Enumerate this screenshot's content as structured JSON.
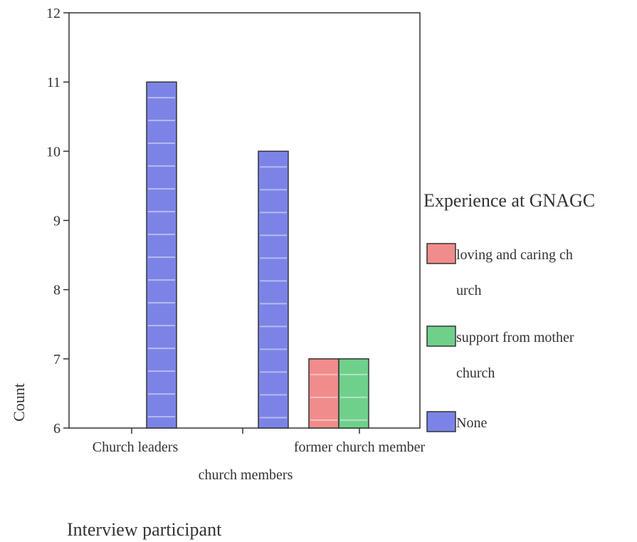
{
  "chart_data": {
    "type": "bar",
    "categories": [
      "Church leaders",
      "church members",
      "former church member"
    ],
    "series": [
      {
        "name": "loving and caring ch urch",
        "color": "#f08c8c",
        "values": [
          null,
          null,
          7
        ]
      },
      {
        "name": "support from mother church",
        "color": "#6fd08c",
        "values": [
          null,
          null,
          7
        ]
      },
      {
        "name": "None",
        "color": "#7b84e6",
        "values": [
          11,
          10,
          null
        ]
      }
    ],
    "legend": {
      "title": "Experience at GNAGC",
      "entries": [
        {
          "lines": [
            "loving and caring ch",
            "urch"
          ],
          "color": "#f08c8c"
        },
        {
          "lines": [
            "support from mother",
            "church"
          ],
          "color": "#6fd08c"
        },
        {
          "lines": [
            "None"
          ],
          "color": "#7b84e6"
        }
      ],
      "placement": "right"
    },
    "ylabel": "Count",
    "xlabel": "Interview participant",
    "ylim": [
      6,
      12
    ],
    "yticks": [
      6,
      7,
      8,
      9,
      10,
      11,
      12
    ],
    "grid": false
  }
}
